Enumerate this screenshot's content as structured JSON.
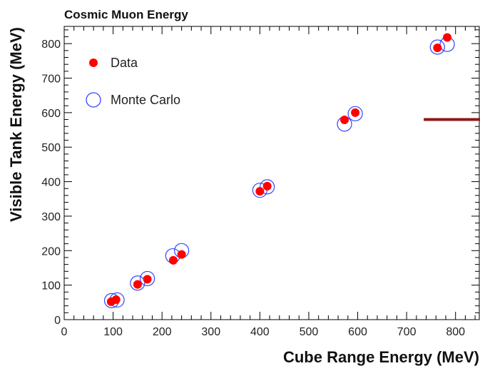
{
  "chart_data": {
    "type": "scatter",
    "title": "Cosmic Muon Energy",
    "xlabel": "Cube Range Energy (MeV)",
    "ylabel": "Visible Tank Energy (MeV)",
    "xlim": [
      0,
      850
    ],
    "ylim": [
      0,
      850
    ],
    "xticks": [
      0,
      100,
      200,
      300,
      400,
      500,
      600,
      700,
      800
    ],
    "yticks": [
      0,
      100,
      200,
      300,
      400,
      500,
      600,
      700,
      800
    ],
    "grid": false,
    "legend_position": "top-left",
    "series": [
      {
        "name": "Data",
        "marker": "filled-circle",
        "color": "#ff0000",
        "points": [
          [
            96,
            52
          ],
          [
            106,
            58
          ],
          [
            150,
            102
          ],
          [
            170,
            117
          ],
          [
            223,
            172
          ],
          [
            240,
            189
          ],
          [
            400,
            372
          ],
          [
            415,
            387
          ],
          [
            573,
            579
          ],
          [
            595,
            600
          ],
          [
            763,
            788
          ],
          [
            783,
            818
          ]
        ]
      },
      {
        "name": "Monte Carlo",
        "marker": "open-circle",
        "color": "#3344ff",
        "points": [
          [
            97,
            55
          ],
          [
            108,
            57
          ],
          [
            150,
            106
          ],
          [
            170,
            119
          ],
          [
            222,
            185
          ],
          [
            240,
            200
          ],
          [
            400,
            375
          ],
          [
            415,
            385
          ],
          [
            573,
            567
          ],
          [
            595,
            597
          ],
          [
            763,
            790
          ],
          [
            783,
            798
          ]
        ]
      }
    ],
    "annotations": [
      {
        "type": "horizontal-line",
        "x_from": 735,
        "x_to": 850,
        "y": 580,
        "color": "#8b1a1a"
      }
    ]
  }
}
